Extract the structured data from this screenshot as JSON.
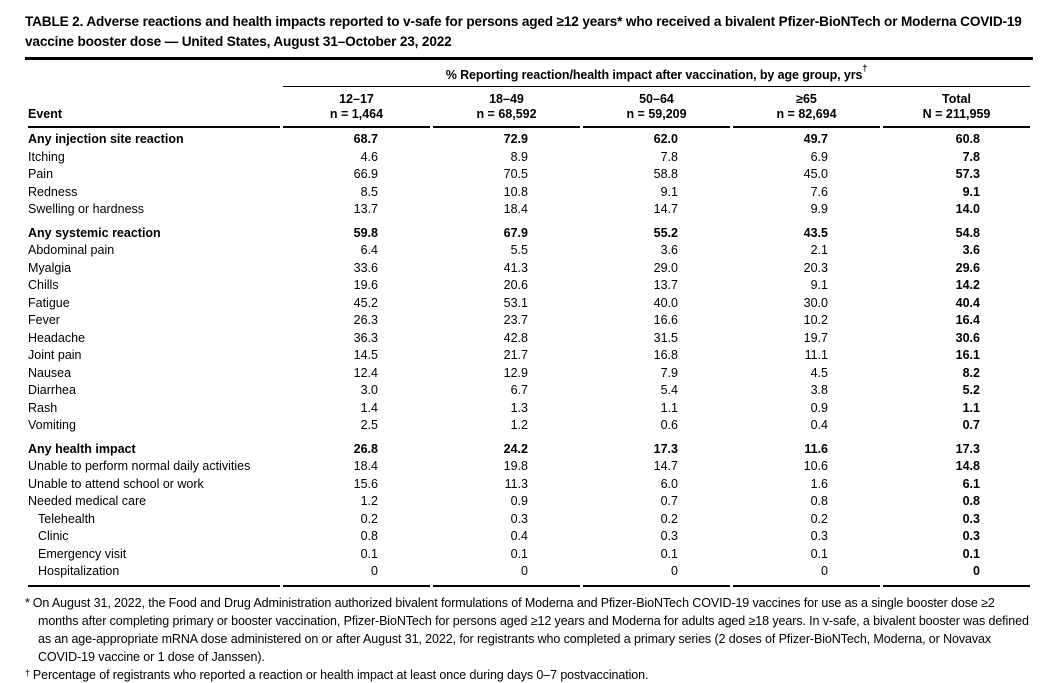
{
  "title": "TABLE 2. Adverse reactions and health impacts reported to v-safe for persons aged ≥12 years* who received a bivalent Pfizer-BioNTech or Moderna COVID-19 vaccine booster dose — United States, August 31–October 23, 2022",
  "table": {
    "span_header": {
      "label": "% Reporting reaction/health impact after vaccination, by age group, yrs",
      "sup": "†"
    },
    "event_header": "Event",
    "columns": [
      {
        "age": "12–17",
        "n": "n = 1,464"
      },
      {
        "age": "18–49",
        "n": "n = 68,592"
      },
      {
        "age": "50–64",
        "n": "n = 59,209"
      },
      {
        "age": "≥65",
        "n": "n = 82,694"
      },
      {
        "age": "Total",
        "n": "N = 211,959"
      }
    ],
    "rows": [
      {
        "label": "Any injection site reaction",
        "style": "section",
        "values": [
          "68.7",
          "72.9",
          "62.0",
          "49.7",
          "60.8"
        ]
      },
      {
        "label": "Itching",
        "style": "",
        "values": [
          "4.6",
          "8.9",
          "7.8",
          "6.9",
          "7.8"
        ]
      },
      {
        "label": "Pain",
        "style": "",
        "values": [
          "66.9",
          "70.5",
          "58.8",
          "45.0",
          "57.3"
        ]
      },
      {
        "label": "Redness",
        "style": "",
        "values": [
          "8.5",
          "10.8",
          "9.1",
          "7.6",
          "9.1"
        ]
      },
      {
        "label": "Swelling or hardness",
        "style": "",
        "values": [
          "13.7",
          "18.4",
          "14.7",
          "9.9",
          "14.0"
        ]
      },
      {
        "label": "Any systemic reaction",
        "style": "section",
        "values": [
          "59.8",
          "67.9",
          "55.2",
          "43.5",
          "54.8"
        ]
      },
      {
        "label": "Abdominal pain",
        "style": "",
        "values": [
          "6.4",
          "5.5",
          "3.6",
          "2.1",
          "3.6"
        ]
      },
      {
        "label": "Myalgia",
        "style": "",
        "values": [
          "33.6",
          "41.3",
          "29.0",
          "20.3",
          "29.6"
        ]
      },
      {
        "label": "Chills",
        "style": "",
        "values": [
          "19.6",
          "20.6",
          "13.7",
          "9.1",
          "14.2"
        ]
      },
      {
        "label": "Fatigue",
        "style": "",
        "values": [
          "45.2",
          "53.1",
          "40.0",
          "30.0",
          "40.4"
        ]
      },
      {
        "label": "Fever",
        "style": "",
        "values": [
          "26.3",
          "23.7",
          "16.6",
          "10.2",
          "16.4"
        ]
      },
      {
        "label": "Headache",
        "style": "",
        "values": [
          "36.3",
          "42.8",
          "31.5",
          "19.7",
          "30.6"
        ]
      },
      {
        "label": "Joint pain",
        "style": "",
        "values": [
          "14.5",
          "21.7",
          "16.8",
          "11.1",
          "16.1"
        ]
      },
      {
        "label": "Nausea",
        "style": "",
        "values": [
          "12.4",
          "12.9",
          "7.9",
          "4.5",
          "8.2"
        ]
      },
      {
        "label": "Diarrhea",
        "style": "",
        "values": [
          "3.0",
          "6.7",
          "5.4",
          "3.8",
          "5.2"
        ]
      },
      {
        "label": "Rash",
        "style": "",
        "values": [
          "1.4",
          "1.3",
          "1.1",
          "0.9",
          "1.1"
        ]
      },
      {
        "label": "Vomiting",
        "style": "",
        "values": [
          "2.5",
          "1.2",
          "0.6",
          "0.4",
          "0.7"
        ]
      },
      {
        "label": "Any health impact",
        "style": "section",
        "values": [
          "26.8",
          "24.2",
          "17.3",
          "11.6",
          "17.3"
        ]
      },
      {
        "label": "Unable to perform normal daily activities",
        "style": "",
        "values": [
          "18.4",
          "19.8",
          "14.7",
          "10.6",
          "14.8"
        ]
      },
      {
        "label": "Unable to attend school or work",
        "style": "",
        "values": [
          "15.6",
          "11.3",
          "6.0",
          "1.6",
          "6.1"
        ]
      },
      {
        "label": "Needed medical care",
        "style": "",
        "values": [
          "1.2",
          "0.9",
          "0.7",
          "0.8",
          "0.8"
        ]
      },
      {
        "label": "Telehealth",
        "style": "indent",
        "values": [
          "0.2",
          "0.3",
          "0.2",
          "0.2",
          "0.3"
        ]
      },
      {
        "label": "Clinic",
        "style": "indent",
        "values": [
          "0.8",
          "0.4",
          "0.3",
          "0.3",
          "0.3"
        ]
      },
      {
        "label": "Emergency visit",
        "style": "indent",
        "values": [
          "0.1",
          "0.1",
          "0.1",
          "0.1",
          "0.1"
        ]
      },
      {
        "label": "Hospitalization",
        "style": "indent",
        "values": [
          "0",
          "0",
          "0",
          "0",
          "0"
        ]
      }
    ]
  },
  "footnotes": [
    {
      "marker": "*",
      "superscript": false,
      "text": "On August 31, 2022, the Food and Drug Administration authorized bivalent formulations of Moderna and Pfizer-BioNTech COVID-19 vaccines for use as a single booster dose ≥2 months after completing primary or booster vaccination, Pfizer-BioNTech for persons aged ≥12 years and Moderna for adults aged ≥18 years. In v-safe, a bivalent booster was defined as an age-appropriate mRNA dose administered on or after August 31, 2022, for registrants who completed a primary series (2 doses of Pfizer-BioNTech, Moderna, or Novavax COVID-19 vaccine or 1 dose of Janssen)."
    },
    {
      "marker": "†",
      "superscript": true,
      "text": "Percentage of registrants who reported a reaction or health impact at least once during days 0–7 postvaccination."
    }
  ]
}
